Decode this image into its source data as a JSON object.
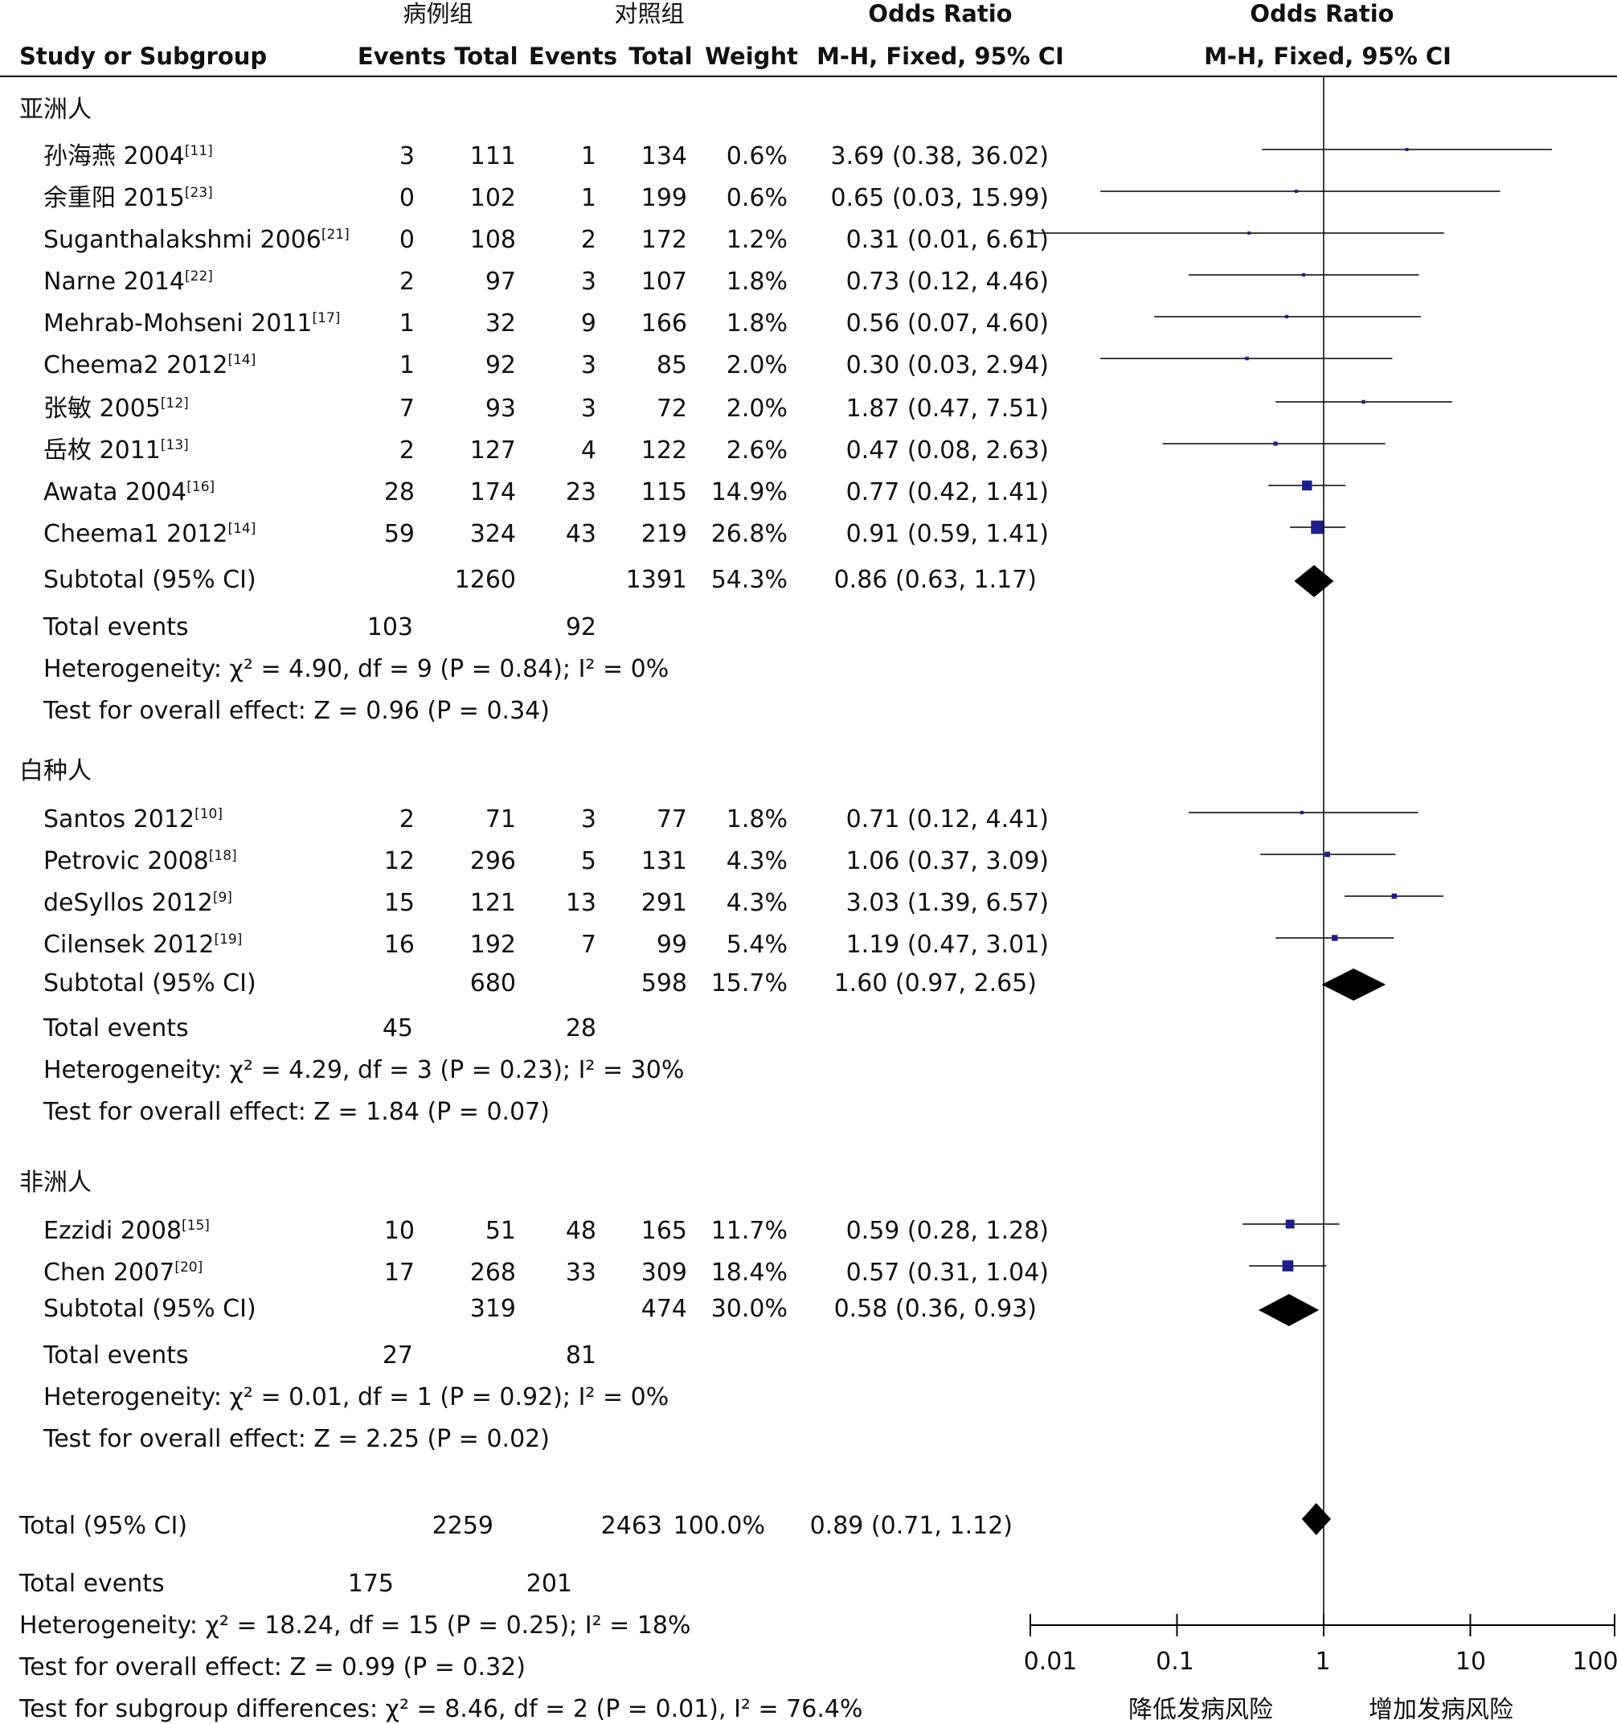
{
  "header": {
    "case_group": "病例组",
    "control_group": "对照组",
    "or_left": "Odds Ratio",
    "or_right": "Odds Ratio",
    "study_col": "Study or Subgroup",
    "events1": "Events",
    "total1": "Total",
    "events2": "Events",
    "total2": "Total",
    "weight": "Weight",
    "method_left": "M-H, Fixed, 95% CI",
    "method_right": "M-H, Fixed, 95% CI"
  },
  "colors": {
    "text": "#111111",
    "subtotal_text": "#555555",
    "study_marker": "#1c1f8c",
    "diamond": "#000000",
    "axis": "#000000"
  },
  "chart_data": {
    "type": "forest",
    "scale": "log",
    "xlim": [
      0.01,
      100
    ],
    "x_ticks": [
      "0.01",
      "0.1",
      "1",
      "10",
      "100"
    ],
    "x_tick_values": [
      0.01,
      0.1,
      1,
      10,
      100
    ],
    "favours_left": "降低发病风险",
    "favours_right": "增加发病风险",
    "groups": [
      {
        "name": "亚洲人",
        "studies": [
          {
            "label": "孙海燕 2004",
            "ref": "[11]",
            "e1": "3",
            "t1": "111",
            "e2": "1",
            "t2": "134",
            "weight": "0.6%",
            "ci_text": "3.69 (0.38, 36.02)",
            "or": 3.69,
            "lo": 0.38,
            "hi": 36.02
          },
          {
            "label": "余重阳 2015",
            "ref": "[23]",
            "e1": "0",
            "t1": "102",
            "e2": "1",
            "t2": "199",
            "weight": "0.6%",
            "ci_text": "0.65 (0.03, 15.99)",
            "or": 0.65,
            "lo": 0.03,
            "hi": 15.99
          },
          {
            "label": "Suganthalakshmi 2006",
            "ref": "[21]",
            "e1": "0",
            "t1": "108",
            "e2": "2",
            "t2": "172",
            "weight": "1.2%",
            "ci_text": "0.31 (0.01, 6.61)",
            "or": 0.31,
            "lo": 0.01,
            "hi": 6.61
          },
          {
            "label": "Narne 2014",
            "ref": "[22]",
            "e1": "2",
            "t1": "97",
            "e2": "3",
            "t2": "107",
            "weight": "1.8%",
            "ci_text": "0.73 (0.12, 4.46)",
            "or": 0.73,
            "lo": 0.12,
            "hi": 4.46
          },
          {
            "label": "Mehrab-Mohseni 2011",
            "ref": "[17]",
            "e1": "1",
            "t1": "32",
            "e2": "9",
            "t2": "166",
            "weight": "1.8%",
            "ci_text": "0.56 (0.07, 4.60)",
            "or": 0.56,
            "lo": 0.07,
            "hi": 4.6
          },
          {
            "label": "Cheema2 2012",
            "ref": "[14]",
            "e1": "1",
            "t1": "92",
            "e2": "3",
            "t2": "85",
            "weight": "2.0%",
            "ci_text": "0.30 (0.03, 2.94)",
            "or": 0.3,
            "lo": 0.03,
            "hi": 2.94
          },
          {
            "label": "张敏 2005",
            "ref": "[12]",
            "e1": "7",
            "t1": "93",
            "e2": "3",
            "t2": "72",
            "weight": "2.0%",
            "ci_text": "1.87 (0.47, 7.51)",
            "or": 1.87,
            "lo": 0.47,
            "hi": 7.51
          },
          {
            "label": "岳枚 2011",
            "ref": "[13]",
            "e1": "2",
            "t1": "127",
            "e2": "4",
            "t2": "122",
            "weight": "2.6%",
            "ci_text": "0.47 (0.08, 2.63)",
            "or": 0.47,
            "lo": 0.08,
            "hi": 2.63
          },
          {
            "label": "Awata 2004",
            "ref": "[16]",
            "e1": "28",
            "t1": "174",
            "e2": "23",
            "t2": "115",
            "weight": "14.9%",
            "ci_text": "0.77 (0.42, 1.41)",
            "or": 0.77,
            "lo": 0.42,
            "hi": 1.41
          },
          {
            "label": "Cheema1 2012",
            "ref": "[14]",
            "e1": "59",
            "t1": "324",
            "e2": "43",
            "t2": "219",
            "weight": "26.8%",
            "ci_text": "0.91 (0.59, 1.41)",
            "or": 0.91,
            "lo": 0.59,
            "hi": 1.41
          }
        ],
        "subtotal": {
          "label": "Subtotal (95% CI)",
          "t1": "1260",
          "t2": "1391",
          "weight": "54.3%",
          "ci_text": "0.86 (0.63, 1.17)",
          "or": 0.86,
          "lo": 0.63,
          "hi": 1.17
        },
        "total_events": {
          "label": "Total events",
          "e1": "103",
          "e2": "92"
        },
        "heterogeneity": "Heterogeneity: χ² = 4.90, df = 9 (P = 0.84); I² = 0%",
        "overall_effect": "Test for overall effect: Z = 0.96 (P = 0.34)"
      },
      {
        "name": "白种人",
        "studies": [
          {
            "label": "Santos 2012",
            "ref": "[10]",
            "e1": "2",
            "t1": "71",
            "e2": "3",
            "t2": "77",
            "weight": "1.8%",
            "ci_text": "0.71 (0.12, 4.41)",
            "or": 0.71,
            "lo": 0.12,
            "hi": 4.41
          },
          {
            "label": "Petrovic 2008",
            "ref": "[18]",
            "e1": "12",
            "t1": "296",
            "e2": "5",
            "t2": "131",
            "weight": "4.3%",
            "ci_text": "1.06 (0.37, 3.09)",
            "or": 1.06,
            "lo": 0.37,
            "hi": 3.09
          },
          {
            "label": "deSyllos 2012",
            "ref": "[9]",
            "e1": "15",
            "t1": "121",
            "e2": "13",
            "t2": "291",
            "weight": "4.3%",
            "ci_text": "3.03 (1.39, 6.57)",
            "or": 3.03,
            "lo": 1.39,
            "hi": 6.57
          },
          {
            "label": "Cilensek 2012",
            "ref": "[19]",
            "e1": "16",
            "t1": "192",
            "e2": "7",
            "t2": "99",
            "weight": "5.4%",
            "ci_text": "1.19 (0.47, 3.01)",
            "or": 1.19,
            "lo": 0.47,
            "hi": 3.01
          }
        ],
        "subtotal": {
          "label": "Subtotal (95% CI)",
          "t1": "680",
          "t2": "598",
          "weight": "15.7%",
          "ci_text": "1.60 (0.97, 2.65)",
          "or": 1.6,
          "lo": 0.97,
          "hi": 2.65
        },
        "total_events": {
          "label": "Total events",
          "e1": "45",
          "e2": "28"
        },
        "heterogeneity": "Heterogeneity: χ² = 4.29, df = 3 (P = 0.23); I² = 30%",
        "overall_effect": "Test for overall effect: Z = 1.84 (P = 0.07)"
      },
      {
        "name": "非洲人",
        "studies": [
          {
            "label": "Ezzidi 2008",
            "ref": "[15]",
            "e1": "10",
            "t1": "51",
            "e2": "48",
            "t2": "165",
            "weight": "11.7%",
            "ci_text": "0.59 (0.28, 1.28)",
            "or": 0.59,
            "lo": 0.28,
            "hi": 1.28
          },
          {
            "label": "Chen 2007",
            "ref": "[20]",
            "e1": "17",
            "t1": "268",
            "e2": "33",
            "t2": "309",
            "weight": "18.4%",
            "ci_text": "0.57 (0.31, 1.04)",
            "or": 0.57,
            "lo": 0.31,
            "hi": 1.04
          }
        ],
        "subtotal": {
          "label": "Subtotal (95% CI)",
          "t1": "319",
          "t2": "474",
          "weight": "30.0%",
          "ci_text": "0.58 (0.36, 0.93)",
          "or": 0.58,
          "lo": 0.36,
          "hi": 0.93
        },
        "total_events": {
          "label": "Total events",
          "e1": "27",
          "e2": "81"
        },
        "heterogeneity": "Heterogeneity: χ² = 0.01, df = 1 (P = 0.92); I² = 0%",
        "overall_effect": "Test for overall effect: Z = 2.25 (P = 0.02)"
      }
    ],
    "overall": {
      "label": "Total (95% CI)",
      "t1": "2259",
      "t2": "2463",
      "weight": "100.0%",
      "ci_text": "0.89 (0.71, 1.12)",
      "or": 0.89,
      "lo": 0.71,
      "hi": 1.12,
      "total_events": {
        "label": "Total events",
        "e1": "175",
        "e2": "201"
      },
      "heterogeneity": "Heterogeneity: χ² = 18.24, df = 15 (P = 0.25); I² = 18%",
      "overall_effect": "Test for overall effect: Z = 0.99 (P = 0.32)",
      "subgroup_differences": "Test for subgroup differences: χ² = 8.46, df = 2 (P = 0.01), I² = 76.4%"
    }
  }
}
